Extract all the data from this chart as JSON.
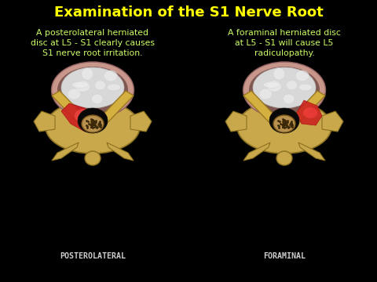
{
  "title": "Examination of the S1 Nerve Root",
  "title_color": "#FFFF00",
  "title_fontsize": 13,
  "background_color": "#000000",
  "left_text": [
    "A posterolateral herniated",
    "disc at L5 - S1 clearly causes",
    "S1 nerve root irritation."
  ],
  "right_text": [
    "A foraminal herniated disc",
    "at L5 - S1 will cause L5",
    "radiculopathy."
  ],
  "left_label": "POSTEROLATERAL",
  "right_label": "FORAMINAL",
  "label_color": "#CCCCCC",
  "text_color": "#FFFFFF",
  "text_highlight_color": "#CCFF66",
  "bone_color": "#C8A84A",
  "bone_edge": "#8A7020",
  "annulus_color": "#C8968A",
  "nucleus_color": "#E0E0E0",
  "canal_color": "#1A1A1A",
  "nerve_color": "#B89050",
  "nerve_dot_color": "#3A2808",
  "hern_color": "#CC2222",
  "lam_color": "#D4B040",
  "lam_edge": "#9A7820"
}
